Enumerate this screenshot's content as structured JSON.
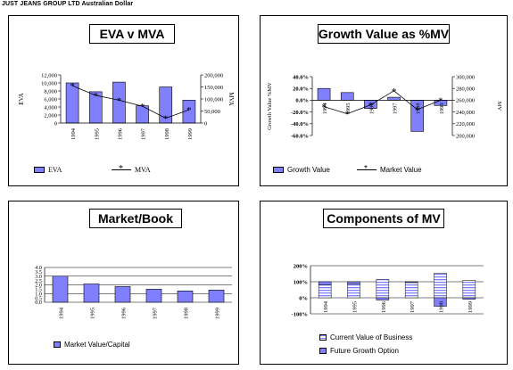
{
  "header": "JUST JEANS GROUP LTD Australian Dollar",
  "colors": {
    "bar": "#8080ff",
    "line": "#000000",
    "grid": "#000000"
  },
  "charts": {
    "eva": {
      "title": "EVA v MVA",
      "legend": {
        "bar": "EVA",
        "line": "MVA"
      }
    },
    "growth": {
      "title": "Growth Value as %MV",
      "legend": {
        "bar": "Growth Value",
        "line": "Market Value"
      }
    },
    "mb": {
      "title": "Market/Book",
      "legend": {
        "bar": "Market Value/Capital"
      }
    },
    "comp": {
      "title": "Components of MV",
      "legend": {
        "a": "Current Value of Business",
        "b": "Future Growth Option"
      }
    }
  },
  "chart_data": [
    {
      "type": "bar",
      "title": "EVA v MVA",
      "categories": [
        "1994",
        "1995",
        "1996",
        "1997",
        "1998",
        "1999"
      ],
      "ylabel": "EVA",
      "y2label": "MVA",
      "ylim": [
        0,
        12000
      ],
      "yticks": [
        "12,000",
        "10,000",
        "8,000",
        "6,000",
        "4,000",
        "2,000",
        "0"
      ],
      "y2lim": [
        0,
        200000
      ],
      "y2ticks": [
        "200,000",
        "150,000",
        "100,000",
        "50,000",
        "0"
      ],
      "series": [
        {
          "name": "EVA",
          "kind": "bar",
          "values": [
            10000,
            7800,
            10200,
            4300,
            9000,
            5700
          ]
        },
        {
          "name": "MVA",
          "kind": "line",
          "axis": "right",
          "values": [
            155000,
            115000,
            95000,
            70000,
            20000,
            55000
          ]
        }
      ],
      "legend": "bottom"
    },
    {
      "type": "bar",
      "title": "Growth Value as %MV",
      "categories": [
        "1994",
        "1995",
        "1996",
        "1997",
        "1998",
        "1999"
      ],
      "ylabel": "Growth Value %MV",
      "y2label": "MV",
      "ylim": [
        -60,
        40
      ],
      "yticks": [
        "40.0%",
        "20.0%",
        "0.0%",
        "-20.0%",
        "-40.0%",
        "-60.0%"
      ],
      "y2lim": [
        200000,
        300000
      ],
      "y2ticks": [
        "300,000",
        "280,000",
        "260,000",
        "240,000",
        "220,000",
        "200,000"
      ],
      "series": [
        {
          "name": "Growth Value",
          "kind": "bar",
          "values": [
            20,
            13,
            -14,
            5,
            -53,
            -9
          ]
        },
        {
          "name": "Market Value",
          "kind": "line",
          "axis": "right",
          "values": [
            249000,
            237000,
            252000,
            276000,
            244000,
            260000
          ]
        }
      ],
      "legend": "bottom"
    },
    {
      "type": "bar",
      "title": "Market/Book",
      "categories": [
        "1994",
        "1995",
        "1996",
        "1997",
        "1998",
        "1999"
      ],
      "ylim": [
        0,
        4
      ],
      "yticks": [
        "4.0",
        "3.5",
        "3.0",
        "2.5",
        "2.0",
        "1.5",
        "1.0",
        "0.5",
        "0.0"
      ],
      "series": [
        {
          "name": "Market Value/Capital",
          "kind": "bar",
          "values": [
            3.0,
            2.1,
            1.8,
            1.5,
            1.3,
            1.4
          ]
        }
      ],
      "grid": true,
      "legend": "bottom"
    },
    {
      "type": "bar",
      "stacked": true,
      "title": "Components of MV",
      "categories": [
        "1994",
        "1995",
        "1996",
        "1997",
        "1998",
        "1999"
      ],
      "ylim": [
        -100,
        200
      ],
      "yticks": [
        "200%",
        "100%",
        "0%",
        "-100%"
      ],
      "series": [
        {
          "name": "Current Value of Business",
          "values": [
            80,
            87,
            114,
            95,
            153,
            109
          ]
        },
        {
          "name": "Future Growth Option",
          "values": [
            20,
            13,
            -14,
            5,
            -53,
            -9
          ]
        }
      ],
      "grid": true,
      "legend": "bottom"
    }
  ]
}
